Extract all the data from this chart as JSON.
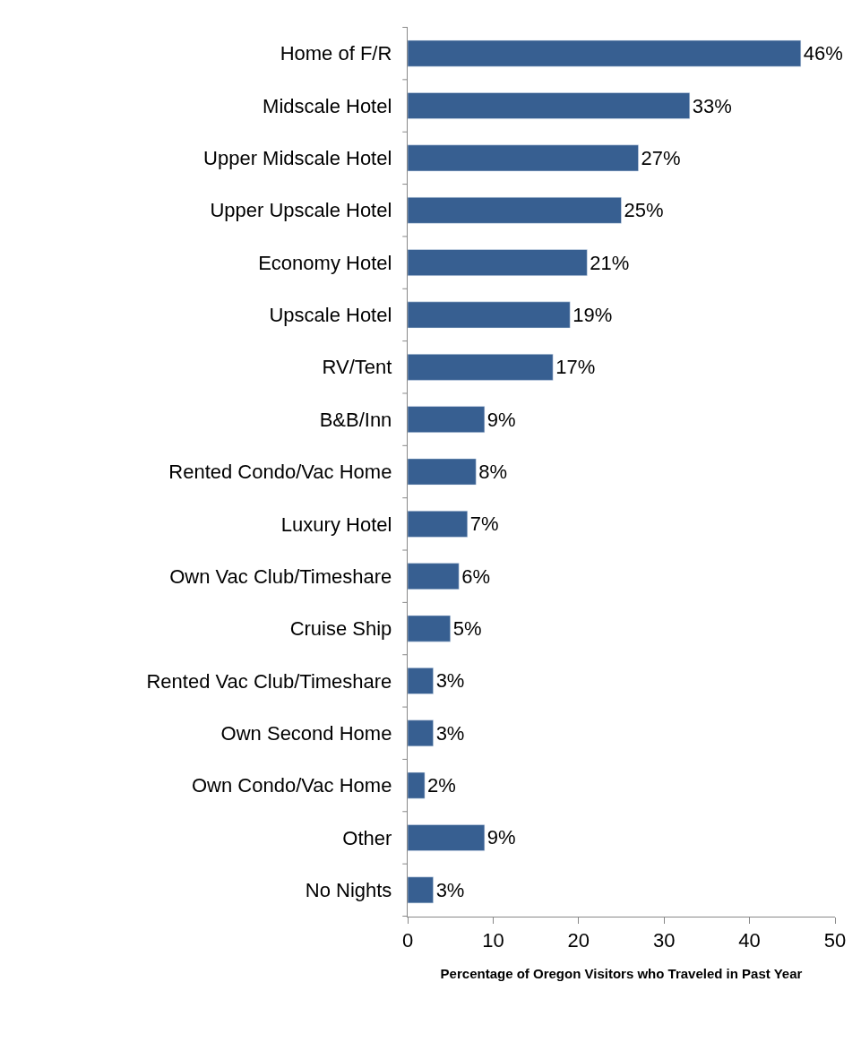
{
  "chart_data": {
    "type": "bar",
    "orientation": "horizontal",
    "xlabel": "Percentage of Oregon Visitors who Traveled in Past Year",
    "categories": [
      "Home of F/R",
      "Midscale Hotel",
      "Upper Midscale Hotel",
      "Upper Upscale Hotel",
      "Economy Hotel",
      "Upscale Hotel",
      "RV/Tent",
      "B&B/Inn",
      "Rented Condo/Vac Home",
      "Luxury Hotel",
      "Own Vac Club/Timeshare",
      "Cruise Ship",
      "Rented Vac Club/Timeshare",
      "Own Second Home",
      "Own Condo/Vac Home",
      "Other",
      "No Nights"
    ],
    "values": [
      46,
      33,
      27,
      25,
      21,
      19,
      17,
      9,
      8,
      7,
      6,
      5,
      3,
      3,
      2,
      9,
      3
    ],
    "value_labels": [
      "46%",
      "33%",
      "27%",
      "25%",
      "21%",
      "19%",
      "17%",
      "9%",
      "8%",
      "7%",
      "6%",
      "5%",
      "3%",
      "3%",
      "2%",
      "9%",
      "3%"
    ],
    "color": "#375f91",
    "xlim": [
      0,
      50
    ],
    "xticks": [
      0,
      10,
      20,
      30,
      40,
      50
    ],
    "grid": false,
    "legend": false
  }
}
